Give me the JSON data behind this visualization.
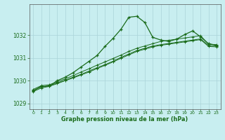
{
  "title": "Graphe pression niveau de la mer (hPa)",
  "bg_color": "#c8eef0",
  "grid_color": "#aad4d8",
  "line_color": "#1a6b1a",
  "xlim": [
    -0.5,
    23.5
  ],
  "ylim": [
    1028.75,
    1033.35
  ],
  "yticks": [
    1029,
    1030,
    1031,
    1032
  ],
  "xticks": [
    0,
    1,
    2,
    3,
    4,
    5,
    6,
    7,
    8,
    9,
    10,
    11,
    12,
    13,
    14,
    15,
    16,
    17,
    18,
    19,
    20,
    21,
    22,
    23
  ],
  "series1_x": [
    0,
    1,
    2,
    3,
    4,
    5,
    6,
    7,
    8,
    9,
    10,
    11,
    12,
    13,
    14,
    15,
    16,
    17,
    18,
    19,
    20,
    21,
    22,
    23
  ],
  "series1_y": [
    1029.55,
    1029.75,
    1029.75,
    1030.0,
    1030.15,
    1030.35,
    1030.6,
    1030.85,
    1031.1,
    1031.5,
    1031.85,
    1032.25,
    1032.78,
    1032.82,
    1032.55,
    1031.9,
    1031.78,
    1031.72,
    1031.82,
    1032.02,
    1032.18,
    1031.92,
    1031.62,
    1031.55
  ],
  "series2_x": [
    0,
    1,
    2,
    3,
    4,
    5,
    6,
    7,
    8,
    9,
    10,
    11,
    12,
    13,
    14,
    15,
    16,
    17,
    18,
    19,
    20,
    21,
    22,
    23
  ],
  "series2_y": [
    1029.62,
    1029.78,
    1029.82,
    1029.95,
    1030.08,
    1030.22,
    1030.38,
    1030.52,
    1030.68,
    1030.82,
    1030.97,
    1031.12,
    1031.28,
    1031.42,
    1031.52,
    1031.62,
    1031.72,
    1031.77,
    1031.82,
    1031.87,
    1031.92,
    1031.97,
    1031.6,
    1031.58
  ],
  "series3_x": [
    0,
    1,
    2,
    3,
    4,
    5,
    6,
    7,
    8,
    9,
    10,
    11,
    12,
    13,
    14,
    15,
    16,
    17,
    18,
    19,
    20,
    21,
    22,
    23
  ],
  "series3_y": [
    1029.58,
    1029.72,
    1029.78,
    1029.9,
    1030.02,
    1030.15,
    1030.28,
    1030.42,
    1030.57,
    1030.7,
    1030.85,
    1031.02,
    1031.17,
    1031.32,
    1031.42,
    1031.52,
    1031.58,
    1031.63,
    1031.68,
    1031.73,
    1031.78,
    1031.83,
    1031.55,
    1031.52
  ],
  "series4_x": [
    0,
    1,
    2,
    3,
    4,
    5,
    6,
    7,
    8,
    9,
    10,
    11,
    12,
    13,
    14,
    15,
    16,
    17,
    18,
    19,
    20,
    21,
    22,
    23
  ],
  "series4_y": [
    1029.52,
    1029.68,
    1029.75,
    1029.87,
    1030.0,
    1030.12,
    1030.25,
    1030.38,
    1030.53,
    1030.67,
    1030.82,
    1030.98,
    1031.13,
    1031.28,
    1031.38,
    1031.48,
    1031.55,
    1031.6,
    1031.65,
    1031.7,
    1031.75,
    1031.8,
    1031.5,
    1031.48
  ]
}
